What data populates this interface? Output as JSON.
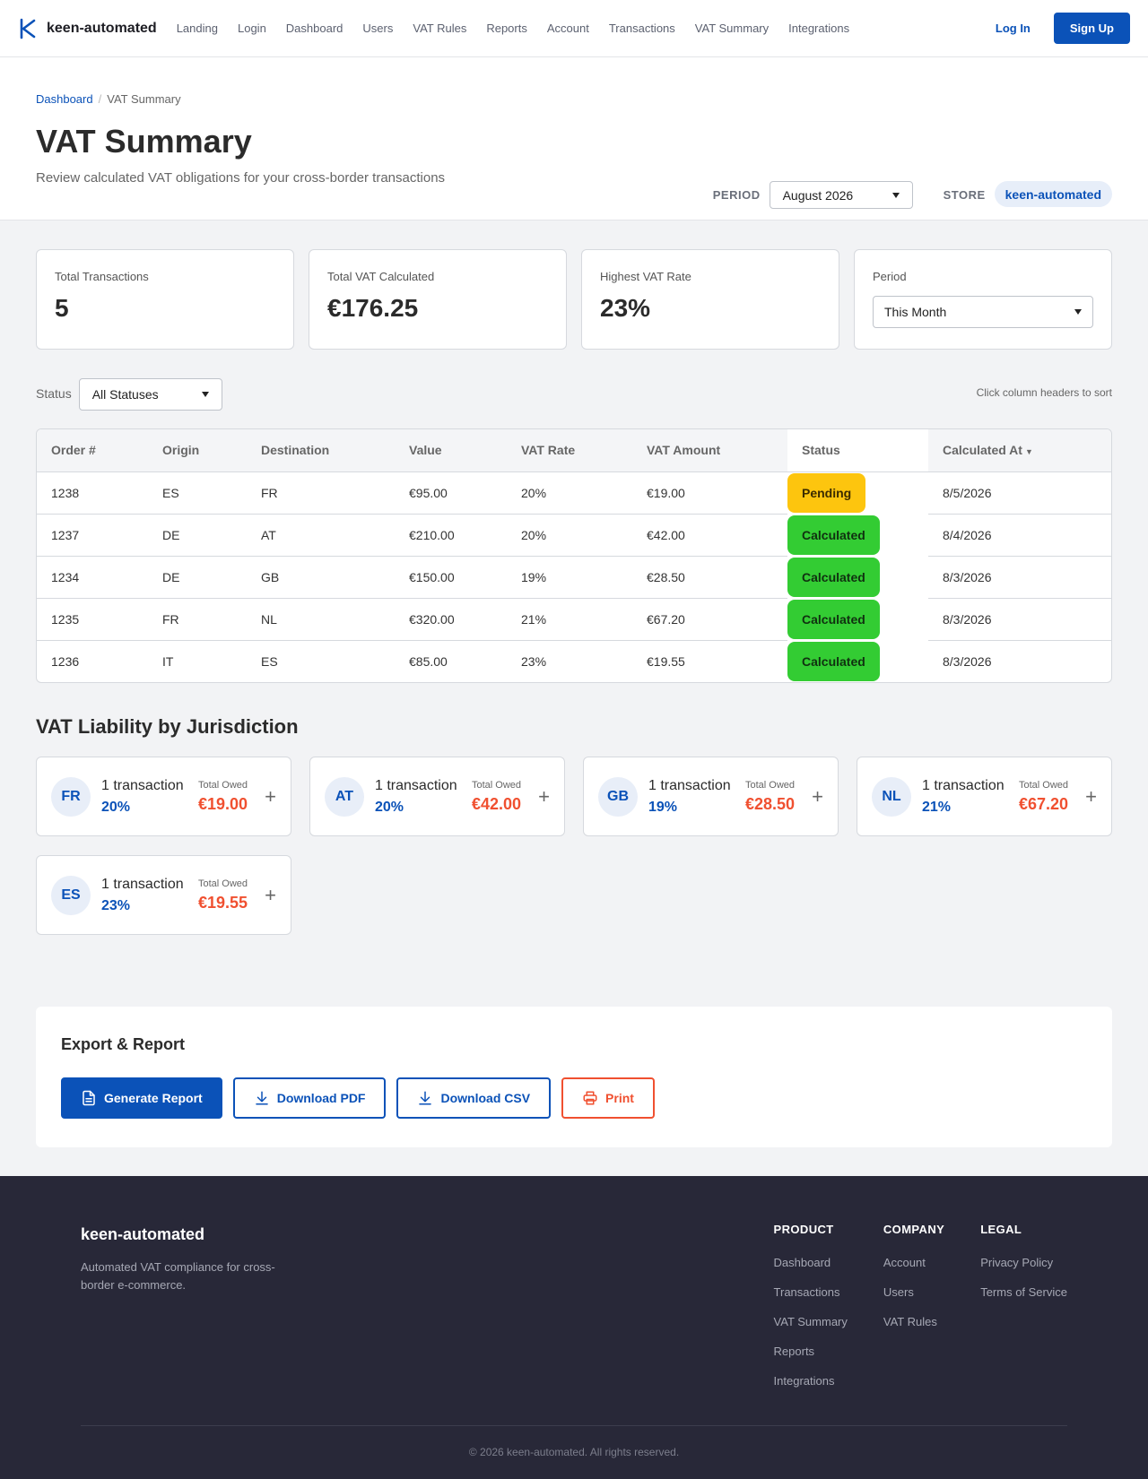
{
  "nav": {
    "brand": "keen-automated",
    "links": [
      "Landing",
      "Login",
      "Dashboard",
      "Users",
      "VAT Rules",
      "Reports",
      "Account",
      "Transactions",
      "VAT Summary",
      "Integrations"
    ],
    "login": "Log In",
    "signup": "Sign Up"
  },
  "header": {
    "breadcrumb_root": "Dashboard",
    "breadcrumb_sep": "/",
    "breadcrumb_current": "VAT Summary",
    "title": "VAT Summary",
    "subtitle": "Review calculated VAT obligations for your cross-border transactions",
    "period_label": "PERIOD",
    "period_value": "August 2026",
    "store_label": "STORE",
    "store_value": "keen-automated"
  },
  "stats": [
    {
      "label": "Total Transactions",
      "value": "5"
    },
    {
      "label": "Total VAT Calculated",
      "value": "€176.25"
    },
    {
      "label": "Highest VAT Rate",
      "value": "23%"
    }
  ],
  "period_card": {
    "label": "Period",
    "value": "This Month"
  },
  "filter": {
    "label": "Status",
    "value": "All Statuses",
    "sort_hint": "Click column headers to sort"
  },
  "table": {
    "columns": [
      "Order #",
      "Origin",
      "Destination",
      "Value",
      "VAT Rate",
      "VAT Amount",
      "Status",
      "Calculated At"
    ],
    "sort_indicator": "▼",
    "rows": [
      {
        "order": "1238",
        "origin": "ES",
        "destination": "FR",
        "value": "€95.00",
        "rate": "20%",
        "amount": "€19.00",
        "status": "Pending",
        "date": "8/5/2026"
      },
      {
        "order": "1237",
        "origin": "DE",
        "destination": "AT",
        "value": "€210.00",
        "rate": "20%",
        "amount": "€42.00",
        "status": "Calculated",
        "date": "8/4/2026"
      },
      {
        "order": "1234",
        "origin": "DE",
        "destination": "GB",
        "value": "€150.00",
        "rate": "19%",
        "amount": "€28.50",
        "status": "Calculated",
        "date": "8/3/2026"
      },
      {
        "order": "1235",
        "origin": "FR",
        "destination": "NL",
        "value": "€320.00",
        "rate": "21%",
        "amount": "€67.20",
        "status": "Calculated",
        "date": "8/3/2026"
      },
      {
        "order": "1236",
        "origin": "IT",
        "destination": "ES",
        "value": "€85.00",
        "rate": "23%",
        "amount": "€19.55",
        "status": "Calculated",
        "date": "8/3/2026"
      }
    ]
  },
  "jurisdiction": {
    "title": "VAT Liability by Jurisdiction",
    "owed_label": "Total Owed",
    "add_symbol": "+",
    "cards": [
      {
        "code": "FR",
        "count": "1 transaction",
        "rate": "20%",
        "owed": "€19.00"
      },
      {
        "code": "AT",
        "count": "1 transaction",
        "rate": "20%",
        "owed": "€42.00"
      },
      {
        "code": "GB",
        "count": "1 transaction",
        "rate": "19%",
        "owed": "€28.50"
      },
      {
        "code": "NL",
        "count": "1 transaction",
        "rate": "21%",
        "owed": "€67.20"
      },
      {
        "code": "ES",
        "count": "1 transaction",
        "rate": "23%",
        "owed": "€19.55"
      }
    ]
  },
  "export": {
    "title": "Export & Report",
    "generate": "Generate Report",
    "pdf": "Download PDF",
    "csv": "Download CSV",
    "print": "Print"
  },
  "footer": {
    "brand": "keen-automated",
    "description": "Automated VAT compliance for cross-border e-commerce.",
    "columns": [
      {
        "title": "PRODUCT",
        "links": [
          "Dashboard",
          "Transactions",
          "VAT Summary",
          "Reports",
          "Integrations"
        ]
      },
      {
        "title": "COMPANY",
        "links": [
          "Account",
          "Users",
          "VAT Rules"
        ]
      },
      {
        "title": "LEGAL",
        "links": [
          "Privacy Policy",
          "Terms of Service"
        ]
      }
    ],
    "copyright": "© 2026 keen-automated. All rights reserved."
  },
  "colors": {
    "primary": "#0b52b8",
    "pending": "#fdc50e",
    "calculated": "#33cc33",
    "owed": "#f05030",
    "footer_bg": "#282838"
  },
  "icons": {
    "brand": "k-logo-icon",
    "generate": "document-icon",
    "download": "download-icon",
    "print": "printer-icon"
  }
}
